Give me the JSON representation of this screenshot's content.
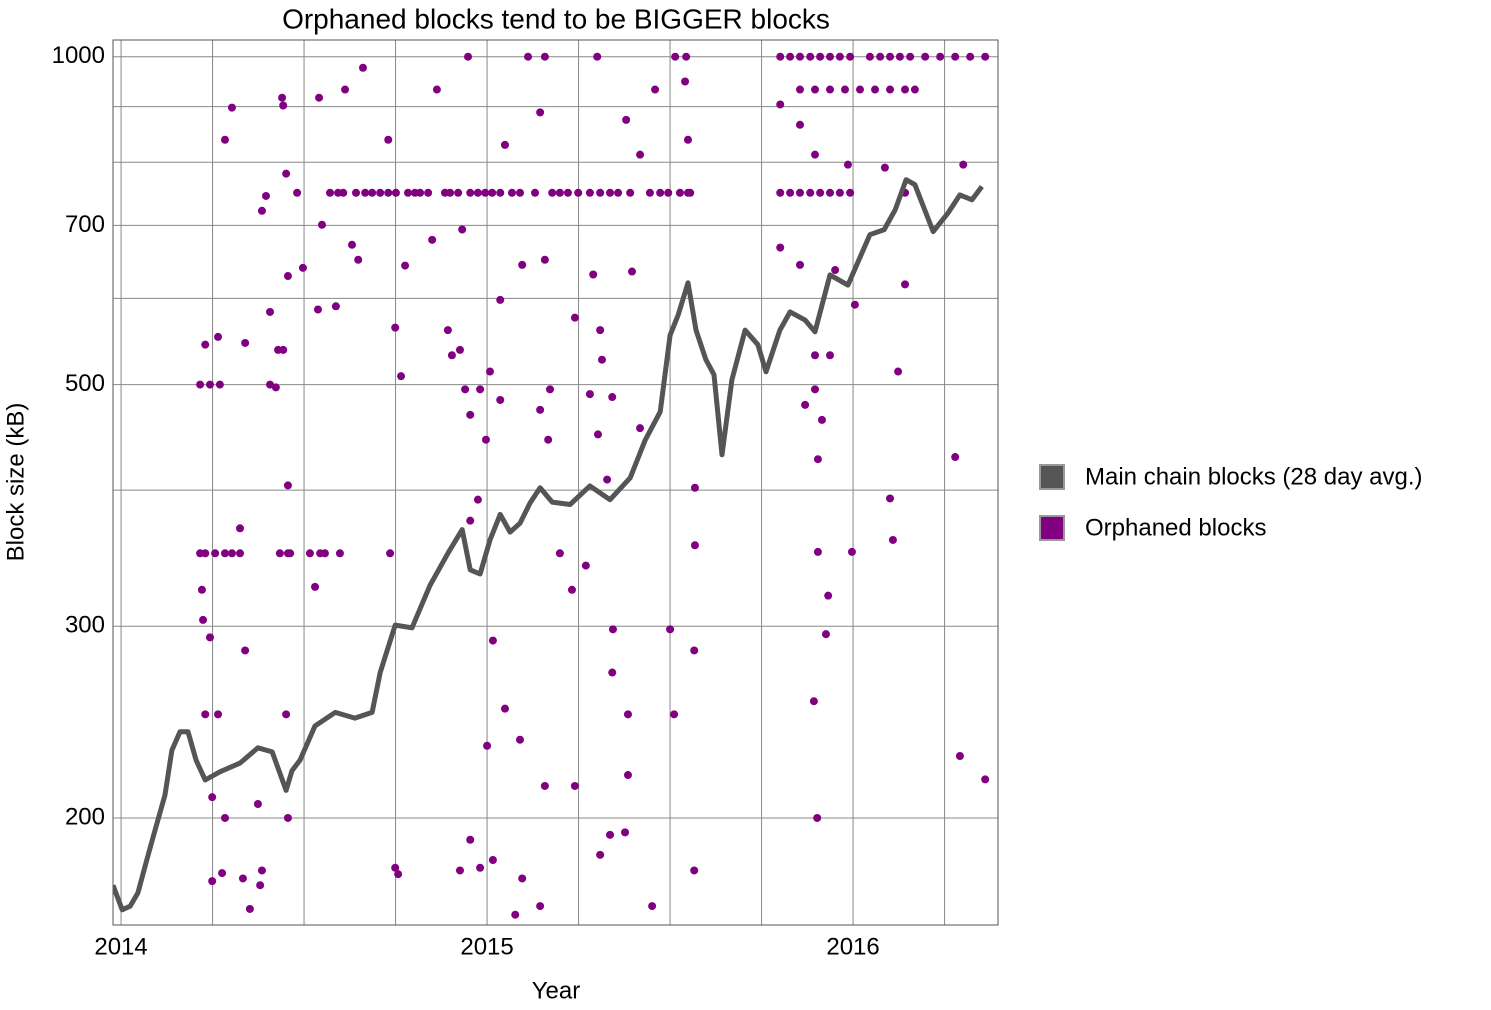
{
  "chart_data": {
    "type": "scatter",
    "title": "Orphaned blocks tend to be BIGGER blocks",
    "x_label": "Year",
    "y_label": "Block size (kB)",
    "xlim": [
      2013.978,
      2016.396
    ],
    "xticks": [
      2014,
      2015,
      2016
    ],
    "x_minor_grid": [
      2014.25,
      2014.5,
      2014.75,
      2015.25,
      2015.5,
      2015.75,
      2016.25
    ],
    "ylim": [
      159.5,
      1036
    ],
    "y_log": true,
    "yticks": [
      200,
      300,
      500,
      700,
      1000
    ],
    "y_minor_grid": [
      400,
      600,
      800,
      900
    ],
    "grid": true,
    "legend": "right",
    "series": [
      {
        "name": "Main chain blocks (28 day avg.)",
        "type": "line",
        "color": "#555555",
        "x": [
          2013.978,
          2014.003,
          2014.025,
          2014.046,
          2014.074,
          2014.093,
          2014.12,
          2014.139,
          2014.161,
          2014.183,
          2014.205,
          2014.23,
          2014.27,
          2014.325,
          2014.374,
          2014.413,
          2014.451,
          2014.467,
          2014.489,
          2014.53,
          2014.585,
          2014.639,
          2014.686,
          2014.708,
          2014.749,
          2014.795,
          2014.844,
          2014.893,
          2014.932,
          2014.954,
          2014.981,
          2015.008,
          2015.036,
          2015.063,
          2015.09,
          2015.117,
          2015.145,
          2015.178,
          2015.227,
          2015.281,
          2015.336,
          2015.391,
          2015.432,
          2015.473,
          2015.5,
          2015.522,
          2015.549,
          2015.571,
          2015.598,
          2015.62,
          2015.642,
          2015.669,
          2015.705,
          2015.74,
          2015.762,
          2015.8,
          2015.828,
          2015.869,
          2015.896,
          2015.937,
          2015.986,
          2016.046,
          2016.085,
          2016.115,
          2016.145,
          2016.169,
          2016.219,
          2016.26,
          2016.292,
          2016.325,
          2016.352
        ],
        "values": [
          173.5,
          164.7,
          166,
          170.7,
          184.9,
          195,
          210,
          230.8,
          240,
          240,
          226,
          216.7,
          220.5,
          224.6,
          232,
          230,
          212,
          221,
          226,
          243,
          250,
          247,
          250,
          272,
          300.7,
          299,
          327,
          350,
          368,
          338,
          335,
          360,
          380,
          366,
          373,
          389,
          402,
          390,
          388,
          403.6,
          392,
          410.6,
          444.6,
          472,
          555,
          579,
          620,
          561,
          527,
          510.5,
          431,
          505,
          561,
          544,
          513.7,
          561,
          583,
          573,
          559,
          630.5,
          617,
          686.4,
          693.9,
          723.5,
          771,
          763,
          691,
          719,
          746.7,
          739,
          760
        ]
      },
      {
        "name": "Orphaned blocks",
        "type": "scatter",
        "color": "#800080",
        "x": [
          2014.216,
          2014.23,
          2014.257,
          2014.284,
          2014.303,
          2014.325,
          2014.434,
          2014.456,
          2014.216,
          2014.243,
          2014.27,
          2014.23,
          2014.265,
          2014.221,
          2014.224,
          2014.243,
          2014.249,
          2014.23,
          2014.265,
          2014.284,
          2014.249,
          2014.276,
          2014.303,
          2014.284,
          2014.339,
          2014.325,
          2014.339,
          2014.333,
          2014.352,
          2014.374,
          2014.385,
          2014.38,
          2014.396,
          2014.385,
          2014.407,
          2014.407,
          2014.429,
          2014.423,
          2014.44,
          2014.443,
          2014.451,
          2014.456,
          2014.443,
          2014.456,
          2014.462,
          2014.451,
          2014.456,
          2014.481,
          2014.497,
          2014.516,
          2014.53,
          2014.541,
          2014.538,
          2014.544,
          2014.549,
          2014.557,
          2014.571,
          2014.593,
          2014.587,
          2014.598,
          2014.607,
          2014.612,
          2014.631,
          2014.642,
          2014.648,
          2014.661,
          2014.667,
          2014.686,
          2014.708,
          2014.73,
          2014.751,
          2014.73,
          2014.749,
          2014.765,
          2014.776,
          2014.735,
          2014.749,
          2014.757,
          2014.784,
          2014.803,
          2014.817,
          2014.839,
          2014.85,
          2014.863,
          2014.885,
          2014.899,
          2014.921,
          2014.932,
          2014.948,
          2014.954,
          2014.975,
          2014.995,
          2015.014,
          2015.036,
          2015.049,
          2015.068,
          2015.09,
          2015.112,
          2015.131,
          2015.145,
          2015.158,
          2015.178,
          2015.199,
          2015.221,
          2015.249,
          2015.281,
          2015.301,
          2015.309,
          2015.336,
          2015.358,
          2015.38,
          2015.391,
          2015.418,
          2015.445,
          2015.459,
          2015.473,
          2015.495,
          2015.514,
          2015.527,
          2015.544,
          2015.555,
          2015.541,
          2015.549,
          2015.568,
          2015.568,
          2015.566,
          2015.566,
          2015.549,
          2015.5,
          2015.511,
          2015.451,
          2015.077,
          2015.096,
          2015.145,
          2014.926,
          2014.954,
          2014.981,
          2015.016,
          2015.016,
          2015.0,
          2015.049,
          2015.09,
          2015.158,
          2015.24,
          2015.309,
          2015.336,
          2015.377,
          2015.385,
          2015.385,
          2015.342,
          2015.344,
          2015.27,
          2015.232,
          2015.199,
          2014.954,
          2014.975,
          2014.997,
          2015.036,
          2015.145,
          2015.167,
          2015.24,
          2015.309,
          2015.314,
          2015.303,
          2015.328,
          2015.342,
          2015.396,
          2015.418,
          2015.29,
          2015.281,
          2015.172,
          2015.158,
          2015.096,
          2015.036,
          2015.008,
          2014.981,
          2014.94,
          2014.926,
          2014.904,
          2014.954,
          2014.893,
          2015.801,
          2015.828,
          2015.855,
          2015.883,
          2015.91,
          2015.937,
          2015.964,
          2015.992,
          2016.046,
          2016.074,
          2016.101,
          2016.128,
          2016.156,
          2016.197,
          2016.238,
          2016.279,
          2016.32,
          2016.361,
          2015.855,
          2015.896,
          2015.937,
          2015.978,
          2016.019,
          2016.06,
          2016.101,
          2016.142,
          2016.169,
          2015.801,
          2015.855,
          2015.896,
          2015.986,
          2016.087,
          2015.801,
          2015.828,
          2015.855,
          2015.883,
          2015.91,
          2015.937,
          2015.964,
          2015.992,
          2016.142,
          2015.801,
          2015.855,
          2015.951,
          2016.005,
          2016.142,
          2015.896,
          2015.937,
          2015.869,
          2015.896,
          2015.915,
          2015.904,
          2016.123,
          2016.279,
          2016.301,
          2016.101,
          2016.109,
          2015.997,
          2015.904,
          2015.932,
          2015.926,
          2015.893,
          2015.902,
          2016.292,
          2016.361
        ],
        "values": [
          350,
          350,
          350,
          350,
          350,
          350,
          350,
          350,
          500,
          500,
          500,
          544,
          553,
          324,
          304,
          293,
          209,
          249,
          249,
          200,
          175,
          178,
          898,
          839,
          546,
          369,
          285,
          176,
          165,
          206,
          179,
          173.5,
          745,
          722,
          583,
          500,
          538,
          497,
          917,
          902,
          781,
          629,
          538,
          404,
          350,
          249,
          200,
          750,
          640,
          350,
          326,
          917,
          586,
          350,
          701,
          350,
          750,
          750,
          590,
          350,
          750,
          933,
          672,
          750,
          651,
          977,
          750,
          750,
          750,
          750,
          750,
          839,
          564,
          509,
          643,
          350,
          180,
          177.6,
          750,
          750,
          750,
          750,
          679,
          933,
          750,
          750,
          750,
          694,
          1000,
          750,
          750,
          750,
          750,
          750,
          830,
          750,
          750,
          1000,
          750,
          889,
          1000,
          750,
          750,
          750,
          750,
          750,
          1000,
          750,
          750,
          750,
          875,
          750,
          813,
          750,
          933,
          750,
          750,
          1000,
          750,
          1000,
          750,
          949,
          839,
          402,
          356,
          285,
          179,
          750,
          298,
          249,
          166,
          163,
          176,
          166,
          179,
          191,
          180,
          183,
          291,
          233,
          252,
          236,
          214,
          214,
          185,
          193,
          194,
          219,
          249,
          272,
          298,
          341,
          324,
          350,
          375,
          392,
          445,
          484,
          474,
          445,
          576,
          561,
          527,
          450,
          409,
          487,
          635,
          456,
          631,
          490,
          495,
          651,
          644,
          598,
          514,
          495,
          495,
          538,
          532,
          469,
          561,
          1000,
          1000,
          1000,
          1000,
          1000,
          1000,
          1000,
          1000,
          1000,
          1000,
          1000,
          1000,
          1000,
          1000,
          1000,
          1000,
          1000,
          1000,
          933,
          933,
          933,
          933,
          933,
          933,
          933,
          933,
          933,
          904,
          866,
          813,
          796,
          791,
          750,
          750,
          750,
          750,
          750,
          750,
          750,
          750,
          750,
          668,
          644,
          637,
          592,
          618,
          532,
          532,
          479,
          495,
          464,
          427,
          514,
          429,
          796,
          393,
          360,
          351,
          351,
          320,
          295,
          256,
          200,
          228,
          217
        ]
      }
    ]
  }
}
